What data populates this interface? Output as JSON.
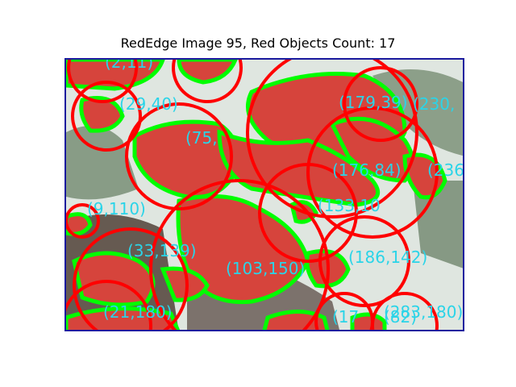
{
  "title": "RedEdge Image 95, Red Objects Count: 17",
  "colors": {
    "frame": "#1a1a9e",
    "contour": "#00ff00",
    "circle": "#ff0000",
    "label": "#2ad4e8",
    "object_fill": "#d6443c",
    "background": "#e8ece6"
  },
  "labels": [
    "(2,11)",
    "(29,40)",
    "(179,39)",
    "(230,",
    "(75,",
    "(176,84)",
    "(236",
    "(9,110)",
    "(133,10",
    "(33,139)",
    "(103,150)",
    "(186,142)",
    "(21,180)",
    "(17",
    "(283,180)",
    "(82)"
  ]
}
